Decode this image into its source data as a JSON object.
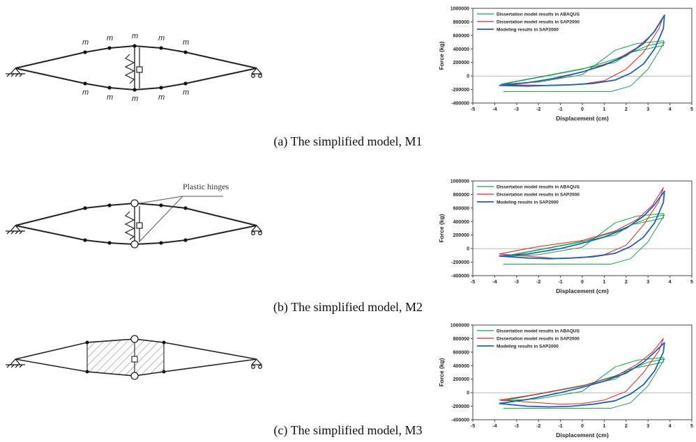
{
  "figures": [
    {
      "id": "a",
      "caption": "(a) The simplified model, M1",
      "mass_label": "m",
      "chart_data": {
        "type": "line",
        "title": "",
        "xlabel": "Displacement (cm)",
        "ylabel": "Force (kg)",
        "xlim": [
          -5,
          5
        ],
        "ylim": [
          -400000,
          1000000
        ],
        "xticks": [
          "-5",
          "-4",
          "-3",
          "-2",
          "-1",
          "0",
          "1",
          "2",
          "3",
          "4",
          "5"
        ],
        "yticks": [
          "-400000",
          "-200000",
          "0",
          "200000",
          "400000",
          "600000",
          "800000",
          "1000000"
        ],
        "series": [
          {
            "name": "Dissertation model results in ABAQUS",
            "color": "#1aa04a",
            "x": [
              -3.6,
              1.3,
              2.2,
              3.0,
              3.75,
              3.0,
              1.5,
              0.0,
              -3.6,
              -2.0,
              0.0,
              1.5,
              2.5,
              3.7,
              3.7,
              2.2,
              1.5,
              -3.7
            ],
            "y": [
              -230000,
              -230000,
              -150000,
              100000,
              500000,
              450000,
              250000,
              100000,
              -120000,
              -90000,
              20000,
              380000,
              480000,
              520000,
              450000,
              350000,
              200000,
              -120000
            ]
          },
          {
            "name": "Dissertation model results in SAP2000",
            "color": "#e02020",
            "x": [
              -3.7,
              -2.0,
              0.0,
              1.5,
              2.5,
              3.2,
              3.7,
              3.5,
              2.8,
              2.0,
              1.0,
              0.0,
              -1.0,
              -3.7
            ],
            "y": [
              -130000,
              -80000,
              60000,
              230000,
              420000,
              620000,
              880000,
              700000,
              350000,
              100000,
              -70000,
              -120000,
              -140000,
              -130000
            ]
          },
          {
            "name": "Modeling results in SAP2000",
            "color": "#1f5fb4",
            "x": [
              -3.8,
              -2.5,
              -1.0,
              0.0,
              1.0,
              2.0,
              2.8,
              3.3,
              3.75,
              3.7,
              3.3,
              2.8,
              2.2,
              1.5,
              0.5,
              -0.5,
              -1.5,
              -2.5,
              -3.8
            ],
            "y": [
              -140000,
              -100000,
              -20000,
              60000,
              160000,
              300000,
              480000,
              660000,
              900000,
              700000,
              400000,
              180000,
              40000,
              -60000,
              -110000,
              -130000,
              -140000,
              -150000,
              -140000
            ]
          }
        ]
      }
    },
    {
      "id": "b",
      "caption": "(b) The simplified model, M2",
      "hinge_label": "Plastic hinges",
      "chart_data": {
        "type": "line",
        "title": "",
        "xlabel": "Displacement (cm)",
        "ylabel": "Force (kg)",
        "xlim": [
          -5,
          5
        ],
        "ylim": [
          -400000,
          1000000
        ],
        "xticks": [
          "-5",
          "-4",
          "-3",
          "-2",
          "-1",
          "0",
          "1",
          "2",
          "3",
          "4",
          "5"
        ],
        "yticks": [
          "-400000",
          "-200000",
          "0",
          "200000",
          "400000",
          "600000",
          "800000",
          "1000000"
        ],
        "series": [
          {
            "name": "Dissertation model results in ABAQUS",
            "color": "#1aa04a",
            "x": [
              -3.6,
              1.3,
              2.2,
              3.0,
              3.75,
              3.0,
              1.5,
              0.0,
              -3.6,
              -2.0,
              0.0,
              1.5,
              2.5,
              3.7,
              3.7,
              2.2,
              1.5,
              -3.7
            ],
            "y": [
              -230000,
              -230000,
              -150000,
              100000,
              500000,
              450000,
              250000,
              100000,
              -120000,
              -90000,
              20000,
              380000,
              480000,
              520000,
              450000,
              350000,
              200000,
              -120000
            ]
          },
          {
            "name": "Dissertation model results in SAP2000",
            "color": "#e02020",
            "x": [
              -3.8,
              -2.0,
              0.0,
              1.5,
              2.5,
              3.2,
              3.7,
              3.5,
              2.8,
              2.0,
              1.0,
              0.0,
              -1.0,
              -3.8
            ],
            "y": [
              -80000,
              30000,
              120000,
              260000,
              430000,
              640000,
              900000,
              700000,
              350000,
              50000,
              -90000,
              -130000,
              -150000,
              -80000
            ]
          },
          {
            "name": "Modeling results in SAP2000",
            "color": "#1f5fb4",
            "x": [
              -3.8,
              -2.5,
              -1.0,
              0.0,
              1.0,
              2.0,
              2.8,
              3.3,
              3.75,
              3.7,
              3.3,
              2.8,
              2.2,
              1.5,
              0.5,
              -0.5,
              -1.5,
              -2.5,
              -3.8
            ],
            "y": [
              -110000,
              -80000,
              0,
              80000,
              170000,
              300000,
              480000,
              650000,
              850000,
              680000,
              380000,
              170000,
              30000,
              -70000,
              -120000,
              -140000,
              -150000,
              -140000,
              -110000
            ]
          }
        ]
      }
    },
    {
      "id": "c",
      "caption": "(c) The simplified model, M3",
      "chart_data": {
        "type": "line",
        "title": "",
        "xlabel": "Displacement (cm)",
        "ylabel": "Force (kg)",
        "xlim": [
          -5,
          5
        ],
        "ylim": [
          -400000,
          1000000
        ],
        "xticks": [
          "-5",
          "-4",
          "-3",
          "-2",
          "-1",
          "0",
          "1",
          "2",
          "3",
          "4",
          "5"
        ],
        "yticks": [
          "-400000",
          "-200000",
          "0",
          "200000",
          "400000",
          "600000",
          "800000",
          "1000000"
        ],
        "series": [
          {
            "name": "Dissertation model results in ABAQUS",
            "color": "#1aa04a",
            "x": [
              -3.6,
              1.3,
              2.2,
              3.0,
              3.75,
              3.0,
              1.5,
              0.0,
              -3.6,
              -2.0,
              0.0,
              1.5,
              2.5,
              3.7,
              3.7,
              2.2,
              1.5,
              -3.7
            ],
            "y": [
              -230000,
              -230000,
              -150000,
              100000,
              500000,
              450000,
              250000,
              100000,
              -120000,
              -90000,
              20000,
              380000,
              480000,
              520000,
              450000,
              350000,
              200000,
              -120000
            ]
          },
          {
            "name": "Dissertation model results in SAP2000",
            "color": "#e02020",
            "x": [
              -3.8,
              -2.0,
              0.0,
              1.5,
              2.5,
              3.2,
              3.7,
              3.5,
              2.8,
              2.0,
              1.0,
              0.0,
              -1.0,
              -3.8
            ],
            "y": [
              -110000,
              -20000,
              100000,
              240000,
              420000,
              600000,
              800000,
              620000,
              300000,
              20000,
              -110000,
              -160000,
              -170000,
              -110000
            ]
          },
          {
            "name": "Modeling results in SAP2000",
            "color": "#1f5fb4",
            "x": [
              -3.8,
              -2.5,
              -1.0,
              0.0,
              1.0,
              2.0,
              2.8,
              3.3,
              3.75,
              3.7,
              3.3,
              2.8,
              2.2,
              1.5,
              0.5,
              -0.5,
              -1.5,
              -2.5,
              -3.8
            ],
            "y": [
              -160000,
              -100000,
              0,
              80000,
              170000,
              290000,
              450000,
              600000,
              740000,
              600000,
              320000,
              120000,
              -20000,
              -120000,
              -170000,
              -200000,
              -210000,
              -200000,
              -160000
            ]
          }
        ]
      }
    }
  ]
}
